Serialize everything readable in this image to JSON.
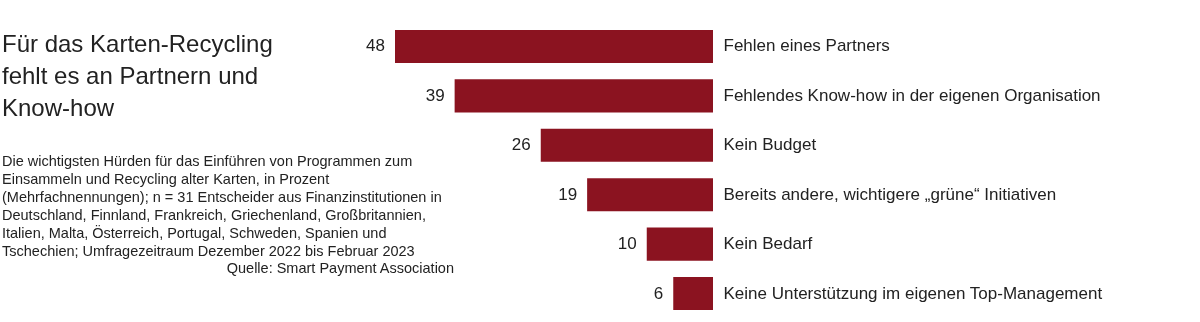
{
  "chart_data": {
    "type": "bar",
    "orientation": "horizontal",
    "title": "Für das Karten-Recycling fehlt es an Partnern und Know-how",
    "subtitle": "Die wichtigsten Hürden für das Einführen von Programmen zum Einsammeln und Recycling alter Karten, in Prozent (Mehrfachnennungen); n = 31 Entscheider aus Finanzinstitutionen in Deutschland, Finnland, Frankreich, Griechenland, Großbritannien, Italien, Malta, Österreich, Portugal, Schweden, Spanien und Tschechien; Umfragezeitraum Dezember 2022 bis Februar 2023",
    "annotations": [
      "Quelle: Smart Payment Association"
    ],
    "categories": [
      "Fehlen eines Partners",
      "Fehlendes Know-how in der eigenen Organisation",
      "Kein Budget",
      "Bereits andere, wichtigere „grüne“ Initiativen",
      "Kein Bedarf",
      "Keine Unterstützung im eigenen Top-Management"
    ],
    "values": [
      48,
      39,
      26,
      19,
      10,
      6
    ],
    "color": "#8b1320",
    "data_labels": true,
    "grid": false
  }
}
